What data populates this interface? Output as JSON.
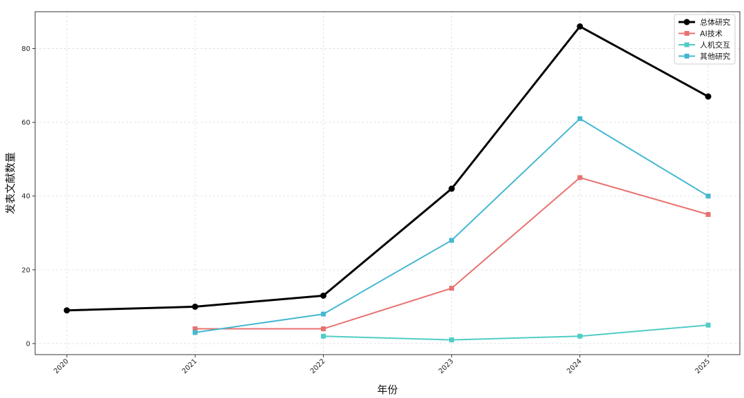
{
  "chart_data": {
    "type": "line",
    "title": "",
    "xlabel": "年份",
    "ylabel": "发表文献数量",
    "x": [
      2020,
      2021,
      2022,
      2023,
      2024,
      2025
    ],
    "xlim": [
      2020,
      2025
    ],
    "ylim": [
      -3,
      90
    ],
    "yticks": [
      0,
      20,
      40,
      60,
      80
    ],
    "grid": true,
    "legend_position": "top-right",
    "series": [
      {
        "name": "总体研究",
        "color": "#000000",
        "marker": "circle",
        "values": [
          9,
          10,
          13,
          42,
          86,
          67
        ]
      },
      {
        "name": "AI技术",
        "color": "#e8716f",
        "marker": "square",
        "values": [
          null,
          4,
          4,
          15,
          45,
          35
        ]
      },
      {
        "name": "人机交互",
        "color": "#4ecdc4",
        "marker": "square",
        "values": [
          null,
          null,
          2,
          1,
          2,
          5
        ]
      },
      {
        "name": "其他研究",
        "color": "#45b7d1",
        "marker": "square",
        "values": [
          null,
          3,
          8,
          28,
          61,
          40
        ]
      }
    ]
  }
}
